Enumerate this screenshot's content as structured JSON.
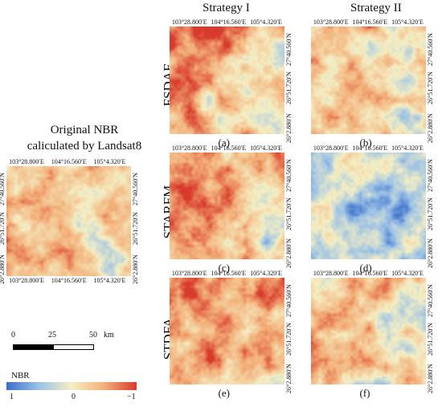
{
  "column_titles": {
    "strategy_1": "Strategy I",
    "strategy_2": "Strategy II"
  },
  "row_labels": {
    "fsdaf": "FSDAF",
    "starfm": "STARFM",
    "stdfa": "STDFA"
  },
  "original": {
    "title_line1": "Original NBR",
    "title_line2": "caliculated by Landsat8"
  },
  "coords": {
    "lon": [
      "103°28.800′E",
      "104°16.560′E",
      "105°4.320′E"
    ],
    "lat": [
      "27°40.560′N",
      "26°51.720′N",
      "26°2.880′N"
    ]
  },
  "panels": [
    {
      "id": "a",
      "label": "(a)",
      "method": "FSDAF",
      "strategy": "Strategy I",
      "tone": "warm"
    },
    {
      "id": "b",
      "label": "(b)",
      "method": "FSDAF",
      "strategy": "Strategy II",
      "tone": "neutral"
    },
    {
      "id": "c",
      "label": "(c)",
      "method": "STARFM",
      "strategy": "Strategy I",
      "tone": "warm"
    },
    {
      "id": "d",
      "label": "(d)",
      "method": "STARFM",
      "strategy": "Strategy II",
      "tone": "cool"
    },
    {
      "id": "e",
      "label": "(e)",
      "method": "STDFA",
      "strategy": "Strategy I",
      "tone": "warm"
    },
    {
      "id": "f",
      "label": "(f)",
      "method": "STDFA",
      "strategy": "Strategy II",
      "tone": "neutral"
    }
  ],
  "scale_bar": {
    "labels": [
      "0",
      "25",
      "50"
    ],
    "unit": "km"
  },
  "legend": {
    "title": "NBR",
    "labels": [
      "1",
      "0",
      "−1"
    ],
    "colors": [
      "#3b6fc9",
      "#9cc2e6",
      "#f4efc4",
      "#f3b07a",
      "#d83a2c"
    ]
  }
}
